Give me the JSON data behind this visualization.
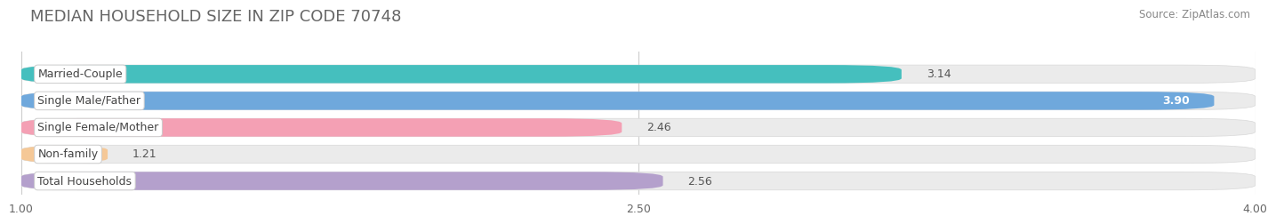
{
  "title": "MEDIAN HOUSEHOLD SIZE IN ZIP CODE 70748",
  "source": "Source: ZipAtlas.com",
  "categories": [
    "Married-Couple",
    "Single Male/Father",
    "Single Female/Mother",
    "Non-family",
    "Total Households"
  ],
  "values": [
    3.14,
    3.9,
    2.46,
    1.21,
    2.56
  ],
  "bar_colors": [
    "#45bfbe",
    "#6fa8dc",
    "#f4a0b4",
    "#f5c897",
    "#b4a0cc"
  ],
  "xmin": 1.0,
  "xmax": 4.0,
  "xticks": [
    1.0,
    2.5,
    4.0
  ],
  "background_color": "#ffffff",
  "bar_bg_color": "#ebebeb",
  "title_fontsize": 13,
  "label_fontsize": 9,
  "value_fontsize": 9,
  "source_fontsize": 8.5,
  "value_inside_threshold": 3.5
}
